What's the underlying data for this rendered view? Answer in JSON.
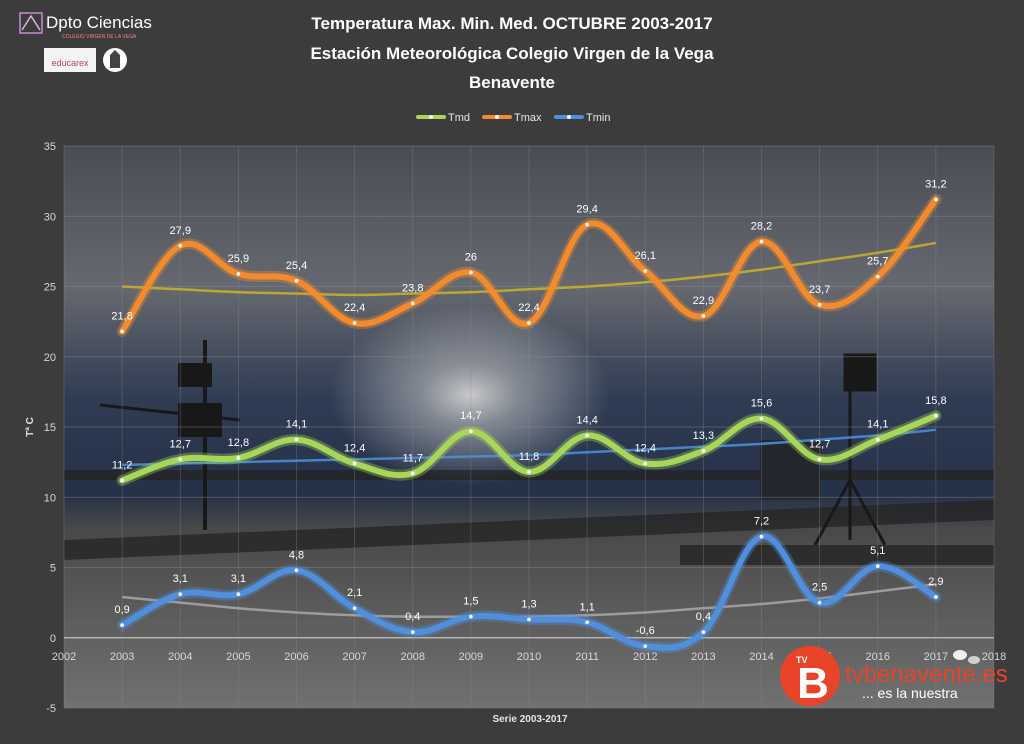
{
  "logos": {
    "dpto_name": "Dpto Ciencias",
    "dpto_sub": "COLEGIO VIRGEN DE LA VEGA",
    "educarex": "educarex",
    "tv_b": "B",
    "tv_small": "TV",
    "tv_site": "tvbenavente.es",
    "tv_slogan": "... es la nuestra"
  },
  "colors": {
    "tmd": "#a8d65a",
    "tmax": "#f28b2e",
    "tmin": "#4f8fdc",
    "trend_max": "#c9b32a",
    "trend_md": "#4f8fdc",
    "trend_min": "#a8a8a8",
    "background": "#3c3c3c"
  },
  "chart_data": {
    "type": "line",
    "title": [
      "Temperatura Max. Min. Med.  OCTUBRE  2003-2017",
      "Estación Meteorológica Colegio Virgen de la Vega",
      "Benavente"
    ],
    "xlabel": "Serie 2003-2017",
    "ylabel": "Tª C",
    "xlim": [
      2002,
      2018
    ],
    "ylim": [
      -5,
      35
    ],
    "xticks": [
      2002,
      2003,
      2004,
      2005,
      2006,
      2007,
      2008,
      2009,
      2010,
      2011,
      2012,
      2013,
      2014,
      2015,
      2016,
      2017,
      2018
    ],
    "yticks": [
      -5,
      0,
      5,
      10,
      15,
      20,
      25,
      30,
      35
    ],
    "grid": true,
    "legend_position": "top",
    "x": [
      2003,
      2004,
      2005,
      2006,
      2007,
      2008,
      2009,
      2010,
      2011,
      2012,
      2013,
      2014,
      2015,
      2016,
      2017
    ],
    "series": [
      {
        "name": "Tmd",
        "key": "tmd",
        "values": [
          11.2,
          12.7,
          12.8,
          14.1,
          12.4,
          11.7,
          14.7,
          11.8,
          14.4,
          12.4,
          13.3,
          15.6,
          12.7,
          14.1,
          15.8
        ],
        "labels": [
          "11,2",
          "12,7",
          "12,8",
          "14,1",
          "12,4",
          "11,7",
          "14,7",
          "11,8",
          "14,4",
          "12,4",
          "13,3",
          "15,6",
          "12,7",
          "14,1",
          "15,8"
        ]
      },
      {
        "name": "Tmax",
        "key": "tmax",
        "values": [
          21.8,
          27.9,
          25.9,
          25.4,
          22.4,
          23.8,
          26,
          22.4,
          29.4,
          26.1,
          22.9,
          28.2,
          23.7,
          25.7,
          31.2
        ],
        "labels": [
          "21,8",
          "27,9",
          "25,9",
          "25,4",
          "22,4",
          "23,8",
          "26",
          "22,4",
          "29,4",
          "26,1",
          "22,9",
          "28,2",
          "23,7",
          "25,7",
          "31,2"
        ]
      },
      {
        "name": "Tmin",
        "key": "tmin",
        "values": [
          0.9,
          3.1,
          3.1,
          4.8,
          2.1,
          0.4,
          1.5,
          1.3,
          1.1,
          -0.6,
          0.4,
          7.2,
          2.5,
          5.1,
          2.9
        ],
        "labels": [
          "0,9",
          "3,1",
          "3,1",
          "4,8",
          "2,1",
          "0,4",
          "1,5",
          "1,3",
          "1,1",
          "-0,6",
          "0,4",
          "7,2",
          "2,5",
          "5,1",
          "2,9"
        ]
      }
    ],
    "trendlines": [
      {
        "key": "tmax",
        "values": [
          25.0,
          24.8,
          24.6,
          24.5,
          24.4,
          24.5,
          24.6,
          24.8,
          25.0,
          25.3,
          25.7,
          26.2,
          26.8,
          27.4,
          28.1
        ]
      },
      {
        "key": "tmd",
        "values": [
          12.3,
          12.4,
          12.5,
          12.6,
          12.7,
          12.8,
          12.9,
          13.0,
          13.2,
          13.4,
          13.6,
          13.8,
          14.1,
          14.4,
          14.8
        ]
      },
      {
        "key": "tmin",
        "values": [
          2.9,
          2.5,
          2.1,
          1.8,
          1.6,
          1.5,
          1.5,
          1.5,
          1.6,
          1.8,
          2.1,
          2.4,
          2.8,
          3.3,
          3.8
        ]
      }
    ]
  }
}
